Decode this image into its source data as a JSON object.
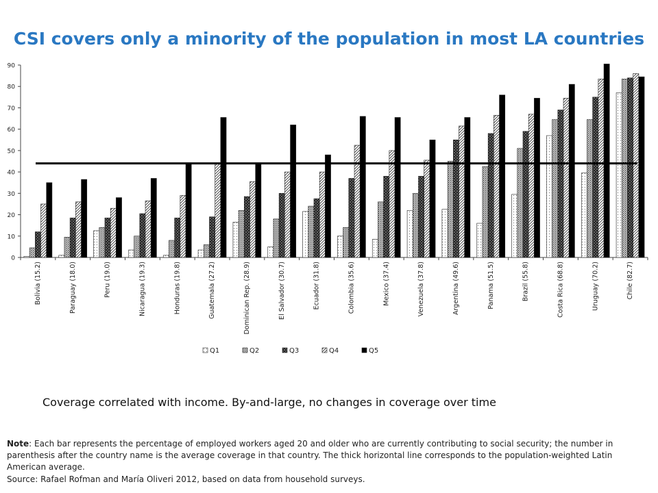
{
  "title": "CSI covers only a minority of the population in most LA countries",
  "subtitle": "Coverage correlated with income.  By-and-large, no changes in coverage over time",
  "note": {
    "label": "Note",
    "text": ": Each bar represents the percentage of employed workers aged 20 and older who are currently contributing to social security; the number in parenthesis after the country name is the average coverage in that country. The thick horizontal line corresponds to the population-weighted Latin American average."
  },
  "source": "Source: Rafael Rofman and María Oliveri 2012, based on data from household surveys.",
  "colors": {
    "title": "#2a78c2"
  },
  "chart_data": {
    "type": "bar",
    "categories": [
      "Bolivia (15.2)",
      "Paraguay (18.0)",
      "Peru (19.0)",
      "Nicaragua (19.3)",
      "Honduras (19.8)",
      "Guatemala (27.2)",
      "Dominican Rep. (28.9)",
      "El Salvador (30.7)",
      "Ecuador (31.8)",
      "Colombia (35.6)",
      "Mexico (37.4)",
      "Venezuela (37.8)",
      "Argentina (49.6)",
      "Panama (51.5)",
      "Brazil (55.8)",
      "Costa Rica (68.8)",
      "Uruguay (70.2)",
      "Chile (82.7)"
    ],
    "series": [
      {
        "name": "Q1",
        "pattern": "dots-light",
        "values": [
          0.5,
          1,
          12.5,
          3.5,
          1,
          3.5,
          16.5,
          5,
          21.5,
          10,
          8.5,
          22,
          22.5,
          16,
          29.5,
          57,
          39.5,
          77
        ]
      },
      {
        "name": "Q2",
        "pattern": "dots-medium",
        "values": [
          4.5,
          9.5,
          14,
          10,
          8,
          6,
          22,
          18,
          24,
          14,
          26,
          30,
          45,
          42.5,
          51,
          64.5,
          64.5,
          83.5
        ]
      },
      {
        "name": "Q3",
        "pattern": "checker-dark",
        "values": [
          12,
          18.5,
          18.5,
          20.5,
          18.5,
          19,
          28.5,
          30,
          27.5,
          37,
          38,
          38,
          55,
          58,
          59,
          69,
          75,
          84
        ]
      },
      {
        "name": "Q4",
        "pattern": "diagonal",
        "values": [
          25,
          26,
          23,
          26.5,
          29,
          44,
          35.5,
          40,
          40,
          52.5,
          50,
          45.5,
          61.5,
          66.5,
          67,
          74.5,
          83.5,
          86
        ]
      },
      {
        "name": "Q5",
        "pattern": "solid-black",
        "values": [
          35,
          36.5,
          28,
          37,
          44,
          65.5,
          44,
          62,
          48,
          66,
          65.5,
          55,
          65.5,
          76,
          74.5,
          81,
          90.5,
          84.5
        ]
      }
    ],
    "reference_line": 44,
    "ylim": [
      0,
      90
    ],
    "yticks": [
      0,
      10,
      20,
      30,
      40,
      50,
      60,
      70,
      80,
      90
    ],
    "xlabel": "",
    "ylabel": "",
    "grid": false,
    "legend_position": "bottom"
  }
}
